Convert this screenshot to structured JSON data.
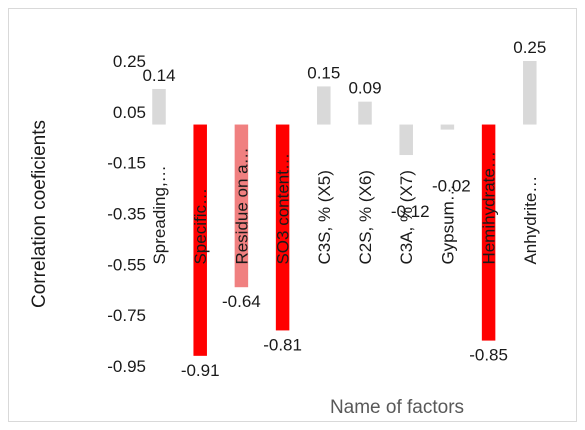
{
  "chart_data": {
    "type": "bar",
    "title": "",
    "xlabel": "Name of factors",
    "ylabel": "Correlation coeficients",
    "ylim": [
      -0.95,
      0.25
    ],
    "yticks": [
      0.25,
      0.05,
      -0.15,
      -0.35,
      -0.55,
      -0.75,
      -0.95
    ],
    "ytick_labels": [
      "0.25",
      "0.05",
      "-0.15",
      "-0.35",
      "-0.55",
      "-0.75",
      "-0.95"
    ],
    "grid": false,
    "legend": "none",
    "categories": [
      "Spreading,…",
      "Specific…",
      "Residue on a…",
      "SO3 content…",
      "C3S, % (X5)",
      "C2S, % (X6)",
      "C3A, % (X7)",
      "Gypsum…",
      "Hemihydrate…",
      "Anhydrite…"
    ],
    "values": [
      0.14,
      -0.91,
      -0.64,
      -0.81,
      0.15,
      0.09,
      -0.12,
      -0.02,
      -0.85,
      0.25
    ],
    "value_labels": [
      "0.14",
      "-0.91",
      "-0.64",
      "-0.81",
      "0.15",
      "0.09",
      "-0.12",
      "-0.02",
      "-0.85",
      "0.25"
    ],
    "bar_colors": [
      "#d9d9d9",
      "#ff0000",
      "#f08080",
      "#ff0000",
      "#d9d9d9",
      "#d9d9d9",
      "#d9d9d9",
      "#d9d9d9",
      "#ff0000",
      "#d9d9d9"
    ]
  }
}
